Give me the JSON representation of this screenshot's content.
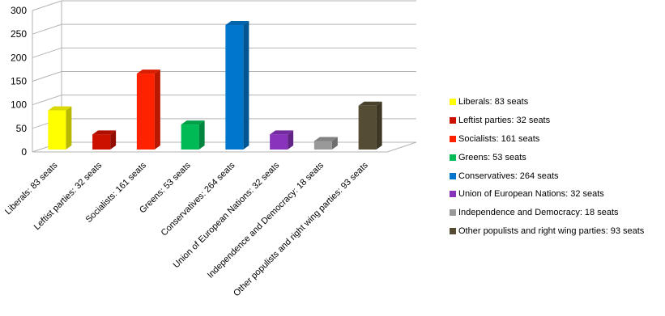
{
  "chart_data": {
    "type": "bar",
    "categories": [
      "Liberals: 83 seats",
      "Leftist parties: 32 seats",
      "Socialists: 161 seats",
      "Greens: 53 seats",
      "Conservatives: 264 seats",
      "Union of European Nations: 32 seats",
      "Independence and Democracy: 18 seats",
      "Other populists and right wing parties: 93 seats"
    ],
    "values": [
      83,
      32,
      161,
      53,
      264,
      32,
      18,
      93
    ],
    "colors": [
      "#ffff00",
      "#cc1100",
      "#ff2200",
      "#00bb55",
      "#0077cc",
      "#8833bb",
      "#999999",
      "#554d33"
    ],
    "ylim": [
      0,
      300
    ],
    "yticks": [
      0,
      50,
      100,
      150,
      200,
      250,
      300
    ],
    "grid": true,
    "legend_position": "right",
    "legend": [
      "Liberals: 83 seats",
      "Leftist parties: 32 seats",
      "Socialists: 161 seats",
      "Greens: 53 seats",
      "Conservatives: 264 seats",
      "Union of European Nations: 32 seats",
      "Independence and Democracy: 18 seats",
      "Other populists and right wing parties: 93 seats"
    ],
    "title": "",
    "xlabel": "",
    "ylabel": ""
  }
}
